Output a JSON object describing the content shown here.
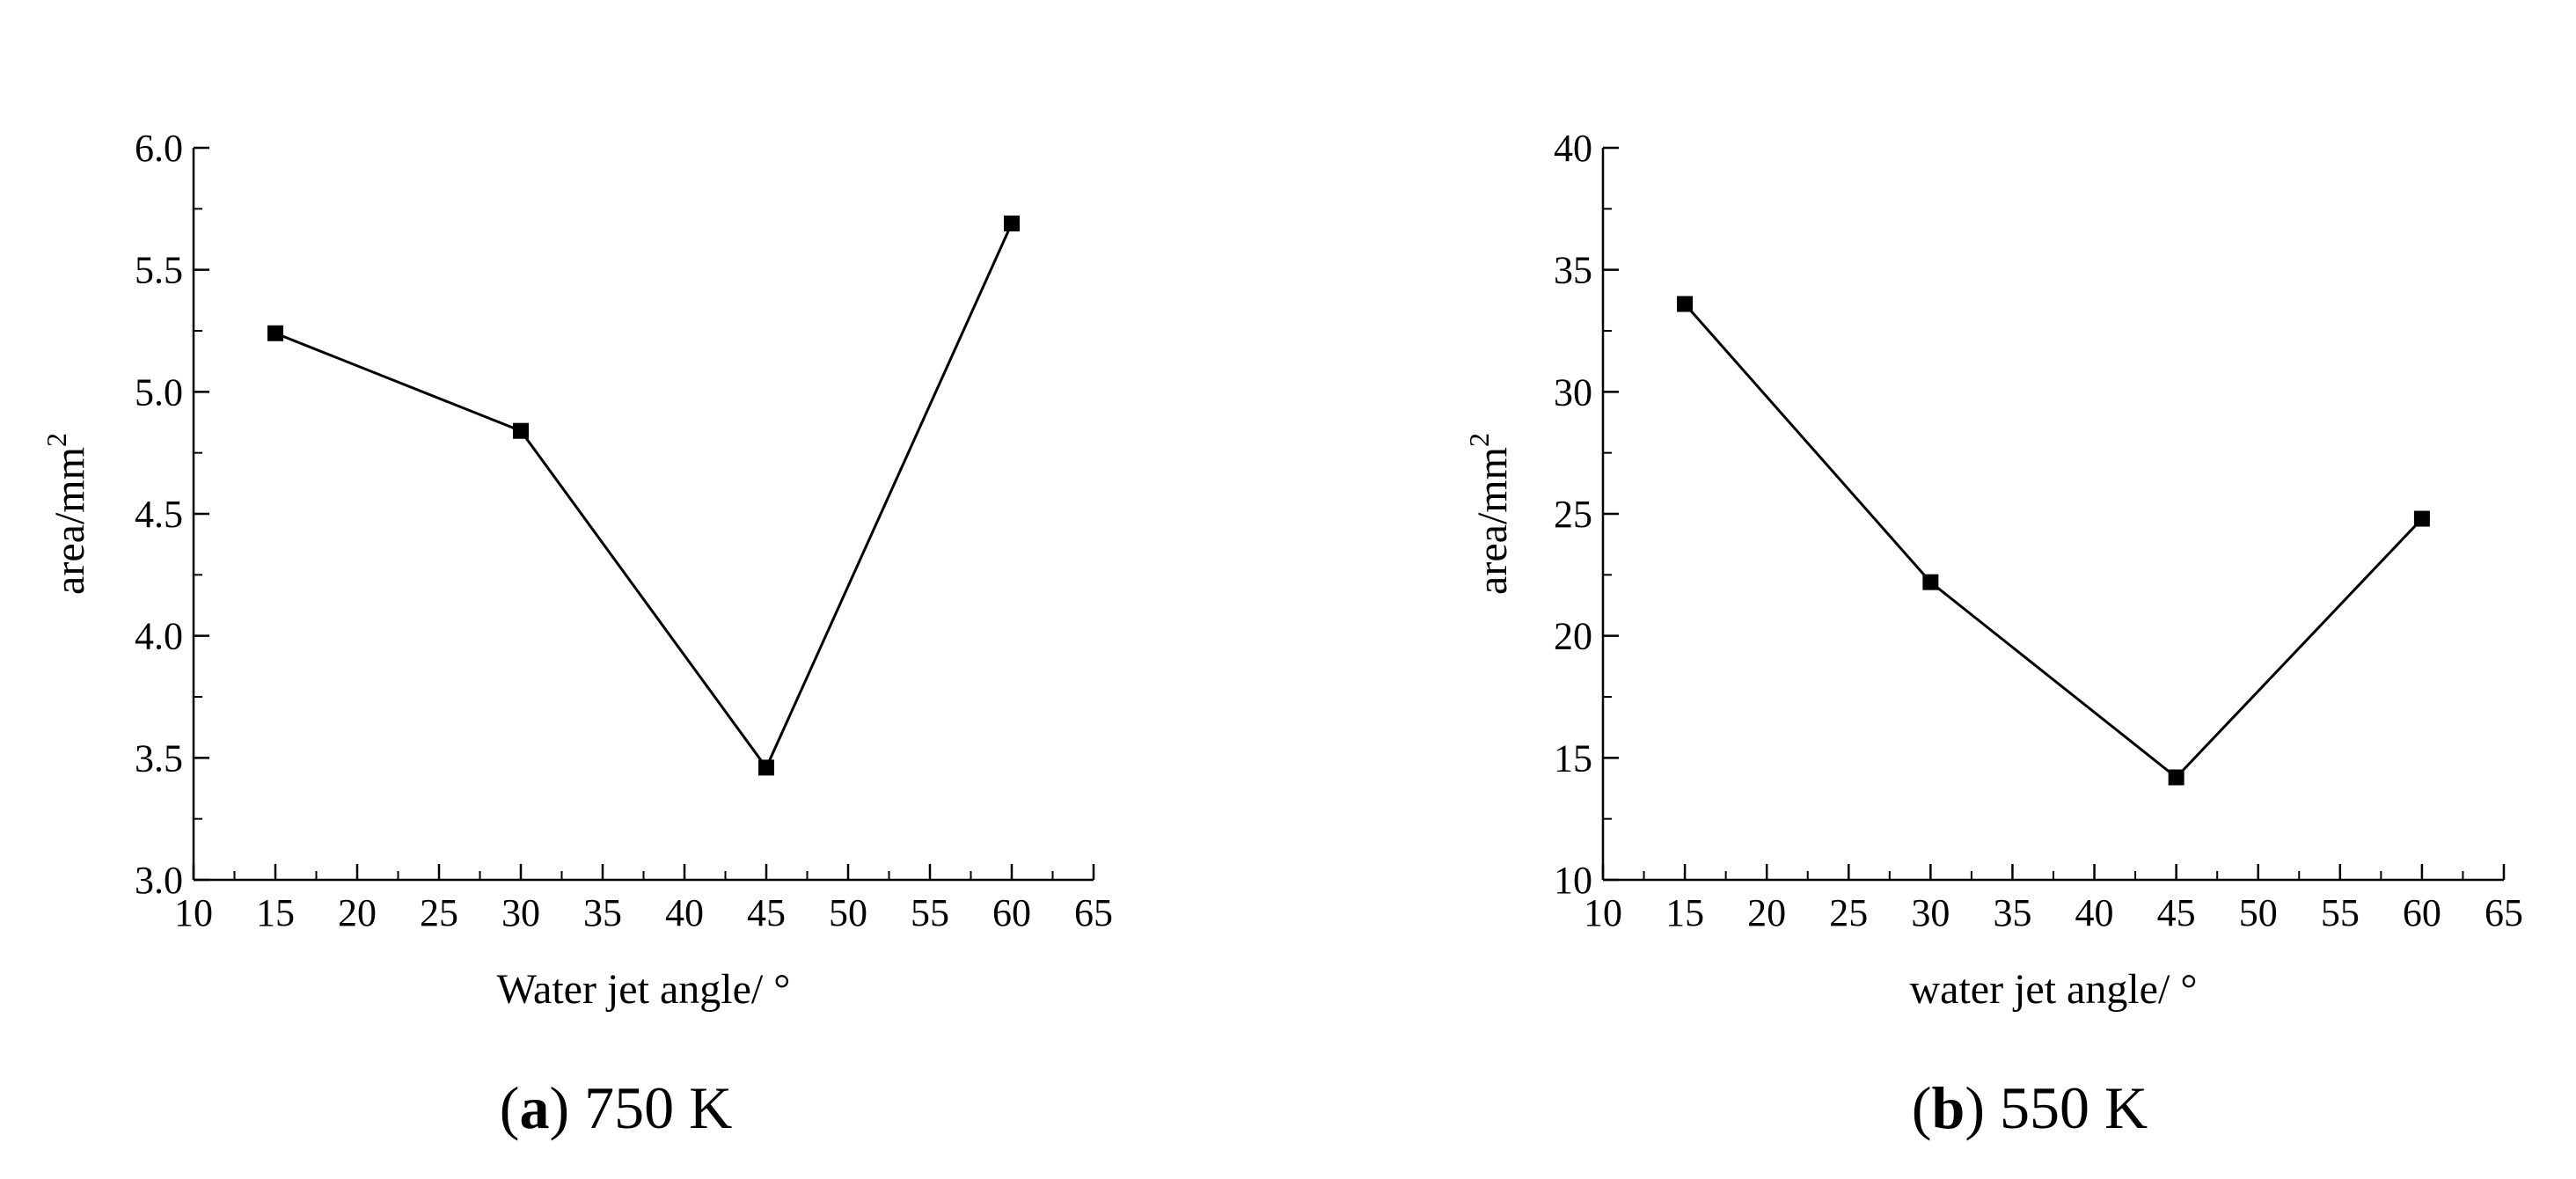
{
  "chart_data": [
    {
      "type": "line",
      "panel_letter": "a",
      "panel_caption": "750 K",
      "xlabel": "Water jet angle/ °",
      "ylabel": "area/mm",
      "ylabel_superscript": "2",
      "xlim": [
        10,
        65
      ],
      "ylim": [
        3.0,
        6.0
      ],
      "x_ticks": [
        10,
        15,
        20,
        25,
        30,
        35,
        40,
        45,
        50,
        55,
        60,
        65
      ],
      "x_tick_labels": [
        "10",
        "15",
        "20",
        "25",
        "30",
        "35",
        "40",
        "45",
        "50",
        "55",
        "60",
        "65"
      ],
      "y_ticks": [
        3.0,
        3.5,
        4.0,
        4.5,
        5.0,
        5.5,
        6.0
      ],
      "y_tick_labels": [
        "3.0",
        "3.5",
        "4.0",
        "4.5",
        "5.0",
        "5.5",
        "6.0"
      ],
      "grid": false,
      "marker": "square",
      "color": "#000000",
      "x": [
        15,
        30,
        45,
        60
      ],
      "y": [
        5.24,
        4.84,
        3.46,
        5.69
      ]
    },
    {
      "type": "line",
      "panel_letter": "b",
      "panel_caption": "550 K",
      "xlabel": "water jet angle/ °",
      "ylabel": "area/mm",
      "ylabel_superscript": "2",
      "xlim": [
        10,
        65
      ],
      "ylim": [
        10,
        40
      ],
      "x_ticks": [
        10,
        15,
        20,
        25,
        30,
        35,
        40,
        45,
        50,
        55,
        60,
        65
      ],
      "x_tick_labels": [
        "10",
        "15",
        "20",
        "25",
        "30",
        "35",
        "40",
        "45",
        "50",
        "55",
        "60",
        "65"
      ],
      "y_ticks": [
        10,
        15,
        20,
        25,
        30,
        35,
        40
      ],
      "y_tick_labels": [
        "10",
        "15",
        "20",
        "25",
        "30",
        "35",
        "40"
      ],
      "grid": false,
      "marker": "square",
      "color": "#000000",
      "x": [
        15,
        30,
        45,
        60
      ],
      "y": [
        33.6,
        22.2,
        14.2,
        24.8
      ]
    }
  ]
}
